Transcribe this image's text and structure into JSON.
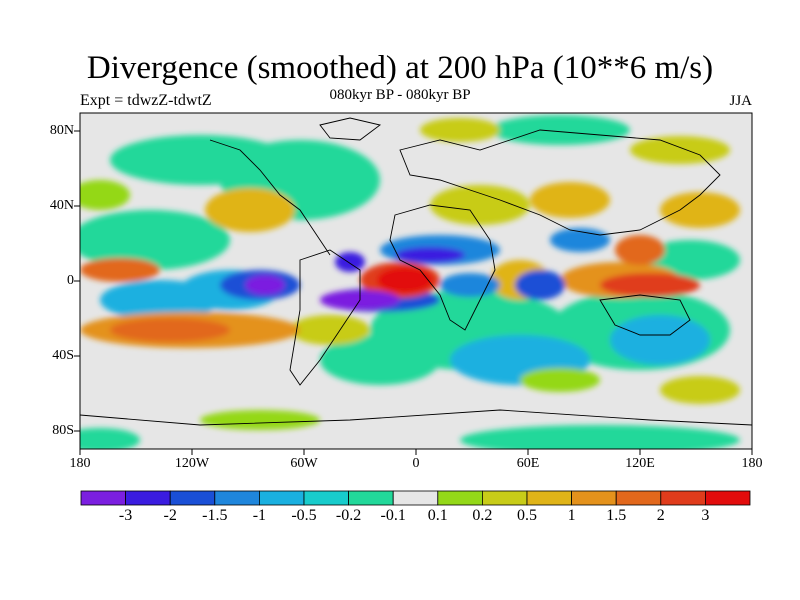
{
  "header": {
    "title": "Divergence (smoothed) at 200 hPa (10**6 m/s)",
    "subtitle": "080kyr BP - 080kyr BP",
    "experiment": "Expt = tdwzZ-tdwtZ",
    "season": "JJA"
  },
  "axes": {
    "lon_ticks": [
      "180",
      "120W",
      "60W",
      "0",
      "60E",
      "120E",
      "180"
    ],
    "lat_ticks": [
      "80N",
      "40N",
      "0",
      "40S",
      "80S"
    ]
  },
  "colorbar": {
    "labels": [
      "-3",
      "-2",
      "-1.5",
      "-1",
      "-0.5",
      "-0.2",
      "-0.1",
      "0.1",
      "0.2",
      "0.5",
      "1",
      "1.5",
      "2",
      "3"
    ],
    "colors": [
      "#7b1fe0",
      "#3a1ce0",
      "#1a4fd6",
      "#1f86dc",
      "#1ab0e0",
      "#18cccc",
      "#22d89a",
      "#e6e6e6",
      "#94d818",
      "#c8cc18",
      "#e0b418",
      "#e4921c",
      "#e2681c",
      "#e03c1c",
      "#e20c0c"
    ]
  }
}
